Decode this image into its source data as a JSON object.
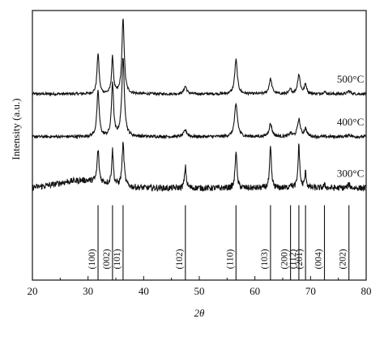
{
  "chart_data": {
    "type": "line",
    "xlabel": "2θ",
    "ylabel": "Intensity (a.u.)",
    "xlim": [
      20,
      80
    ],
    "xticks": [
      20,
      30,
      40,
      50,
      60,
      70,
      80
    ],
    "grid": false,
    "legend": "none",
    "y_units": "arbitrary (each pattern vertically offset)",
    "series": [
      {
        "name": "500°C",
        "baseline": 1.0,
        "noise": 0.03,
        "peaks": [
          {
            "x": 31.8,
            "y": 0.95,
            "w": 0.22
          },
          {
            "x": 34.4,
            "y": 0.85,
            "w": 0.2
          },
          {
            "x": 36.3,
            "y": 1.75,
            "w": 0.25
          },
          {
            "x": 47.5,
            "y": 0.18,
            "w": 0.3
          },
          {
            "x": 56.6,
            "y": 0.8,
            "w": 0.28
          },
          {
            "x": 62.8,
            "y": 0.35,
            "w": 0.3
          },
          {
            "x": 66.4,
            "y": 0.1,
            "w": 0.25
          },
          {
            "x": 67.9,
            "y": 0.45,
            "w": 0.28
          },
          {
            "x": 69.1,
            "y": 0.22,
            "w": 0.25
          },
          {
            "x": 72.5,
            "y": 0.05,
            "w": 0.3
          },
          {
            "x": 76.9,
            "y": 0.07,
            "w": 0.3
          }
        ]
      },
      {
        "name": "400°C",
        "baseline": 0.0,
        "noise": 0.035,
        "peaks": [
          {
            "x": 31.8,
            "y": 1.05,
            "w": 0.25
          },
          {
            "x": 34.4,
            "y": 1.25,
            "w": 0.22
          },
          {
            "x": 36.3,
            "y": 1.8,
            "w": 0.28
          },
          {
            "x": 47.5,
            "y": 0.15,
            "w": 0.35
          },
          {
            "x": 56.6,
            "y": 0.75,
            "w": 0.32
          },
          {
            "x": 62.8,
            "y": 0.3,
            "w": 0.32
          },
          {
            "x": 66.4,
            "y": 0.08,
            "w": 0.28
          },
          {
            "x": 67.9,
            "y": 0.4,
            "w": 0.3
          },
          {
            "x": 69.1,
            "y": 0.18,
            "w": 0.28
          },
          {
            "x": 76.9,
            "y": 0.05,
            "w": 0.3
          }
        ]
      },
      {
        "name": "300°C",
        "baseline": -1.2,
        "noise": 0.07,
        "peaks": [
          {
            "x": 31.8,
            "y": 0.75,
            "w": 0.2
          },
          {
            "x": 34.4,
            "y": 0.8,
            "w": 0.18
          },
          {
            "x": 36.3,
            "y": 1.0,
            "w": 0.22
          },
          {
            "x": 47.5,
            "y": 0.5,
            "w": 0.18
          },
          {
            "x": 56.6,
            "y": 0.9,
            "w": 0.18
          },
          {
            "x": 62.8,
            "y": 0.95,
            "w": 0.18
          },
          {
            "x": 66.4,
            "y": 0.1,
            "w": 0.2
          },
          {
            "x": 67.9,
            "y": 1.0,
            "w": 0.18
          },
          {
            "x": 69.1,
            "y": 0.35,
            "w": 0.18
          },
          {
            "x": 72.5,
            "y": 0.06,
            "w": 0.25
          },
          {
            "x": 76.9,
            "y": 0.08,
            "w": 0.25
          }
        ]
      }
    ],
    "reference_lines": [
      {
        "hkl": "(100)",
        "x": 31.8
      },
      {
        "hkl": "(002)",
        "x": 34.4
      },
      {
        "hkl": "(101)",
        "x": 36.3
      },
      {
        "hkl": "(102)",
        "x": 47.5
      },
      {
        "hkl": "(110)",
        "x": 56.6
      },
      {
        "hkl": "(103)",
        "x": 62.8
      },
      {
        "hkl": "(200)",
        "x": 66.4
      },
      {
        "hkl": "(112)",
        "x": 67.9
      },
      {
        "hkl": "(201)",
        "x": 69.1
      },
      {
        "hkl": "(004)",
        "x": 72.5
      },
      {
        "hkl": "(202)",
        "x": 76.9
      }
    ]
  }
}
